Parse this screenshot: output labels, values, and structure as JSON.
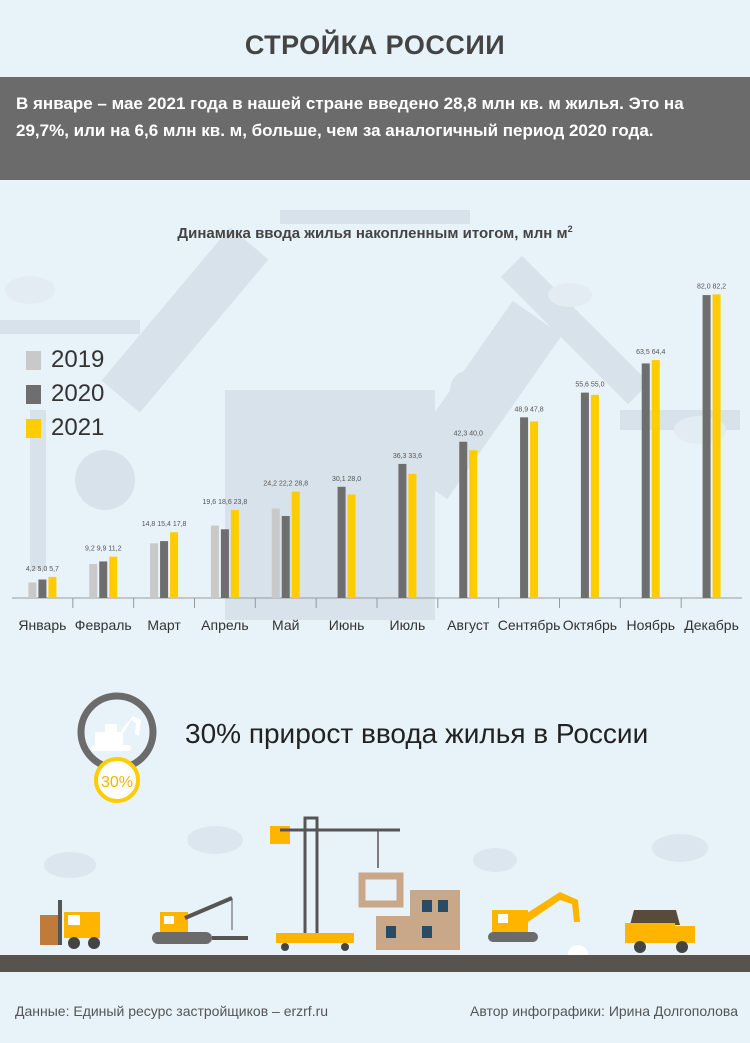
{
  "header": {
    "title": "СТРОЙКА РОССИИ",
    "summary": "В январе – мае 2021 года в нашей стране введено 28,8 млн кв. м жилья. Это на 29,7%, или на 6,6 млн кв. м, больше, чем за аналогичный период 2020 года."
  },
  "colors": {
    "2019": "#c9c9c9",
    "2020": "#6e6e6e",
    "2021": "#ffcc00",
    "banner": "#6b6b6b",
    "background": "#e8f2f9"
  },
  "chart_data": {
    "type": "bar",
    "title": "Динамика ввода жилья накопленным итогом, млн м",
    "title_sup": "2",
    "categories": [
      "Январь",
      "Февраль",
      "Март",
      "Апрель",
      "Май",
      "Июнь",
      "Июль",
      "Август",
      "Сентябрь",
      "Октябрь",
      "Ноябрь",
      "Декабрь"
    ],
    "series": [
      {
        "name": "2019",
        "color": "#c9c9c9",
        "values": [
          4.2,
          9.2,
          14.8,
          19.6,
          24.2,
          null,
          null,
          null,
          null,
          null,
          null,
          null
        ]
      },
      {
        "name": "2020",
        "color": "#6e6e6e",
        "values": [
          5.0,
          9.9,
          15.4,
          18.6,
          22.2,
          30.1,
          36.3,
          42.3,
          48.9,
          55.6,
          63.5,
          82.0
        ]
      },
      {
        "name": "2021",
        "color": "#ffcc00",
        "values": [
          5.7,
          11.2,
          17.8,
          23.8,
          28.8,
          28.0,
          33.6,
          40.0,
          47.8,
          55.0,
          64.4,
          82.2
        ]
      }
    ],
    "data_labels": [
      [
        "4,2",
        "5,0",
        "5,7"
      ],
      [
        "9,2",
        "9,9",
        "11,2"
      ],
      [
        "14,8",
        "15,4",
        "17,8"
      ],
      [
        "19,6",
        "18,6",
        "23,8"
      ],
      [
        "24,2",
        "22,2",
        "28,8"
      ],
      [
        "",
        "30,1",
        "28,0"
      ],
      [
        "",
        "36,3",
        "33,6"
      ],
      [
        "",
        "42,3",
        "40,0"
      ],
      [
        "",
        "48,9",
        "47,8"
      ],
      [
        "",
        "55,6",
        "55,0"
      ],
      [
        "",
        "63,5",
        "64,4"
      ],
      [
        "",
        "82,0",
        "82,2"
      ]
    ],
    "ylim": [
      0,
      85
    ],
    "legend_position": "left"
  },
  "legend": [
    {
      "label": "2019",
      "color": "#c9c9c9"
    },
    {
      "label": "2020",
      "color": "#6e6e6e"
    },
    {
      "label": "2021",
      "color": "#ffcc00"
    }
  ],
  "growth": {
    "title": "30% прирост ввода жилья в России",
    "badge": "30%"
  },
  "footer": {
    "source": "Данные: Единый ресурс застройщиков – erzrf.ru",
    "author": "Автор инфографики: Ирина Долгополова"
  },
  "icons": [
    "excavator-icon",
    "crane-icon",
    "building-icon",
    "forklift-icon",
    "crawler-crane-icon",
    "dump-truck-icon",
    "cloud-icon"
  ]
}
